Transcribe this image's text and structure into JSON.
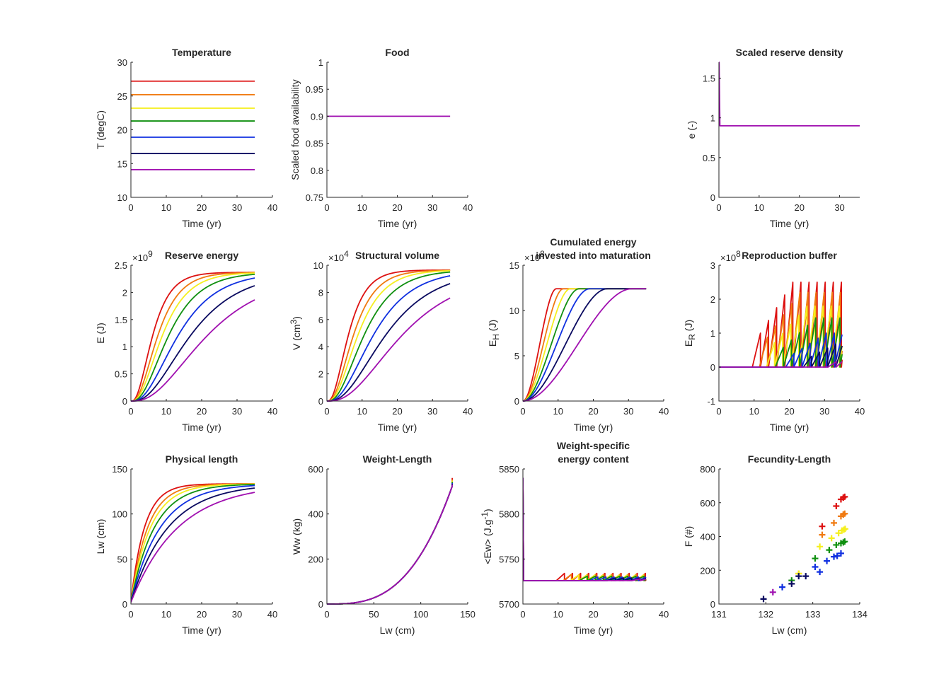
{
  "colors": {
    "T1": "#dd1111",
    "T2": "#f07a10",
    "T3": "#f5ef1f",
    "T4": "#109010",
    "T5": "#1030e0",
    "T6": "#0a0a60",
    "T7": "#a010b0"
  },
  "temperatures": [
    27.2,
    25.2,
    23.2,
    21.3,
    18.9,
    16.5,
    14.1
  ],
  "chart_data": [
    {
      "id": "temperature",
      "type": "line",
      "title": [
        "Temperature"
      ],
      "xlabel": "Time (yr)",
      "ylabel": "T (degC)",
      "xlim": [
        0,
        40
      ],
      "ylim": [
        10,
        30
      ],
      "xticks": [
        0,
        10,
        20,
        30,
        40
      ],
      "xtick_labels": [
        "0",
        "10",
        "20",
        "30",
        "40"
      ],
      "yticks": [
        10,
        15,
        20,
        25,
        30
      ],
      "ytick_labels": [
        "10",
        "15",
        "20",
        "25",
        "30"
      ],
      "series": [
        {
          "color": "T1",
          "x": [
            0,
            35
          ],
          "y": [
            27.2,
            27.2
          ]
        },
        {
          "color": "T2",
          "x": [
            0,
            35
          ],
          "y": [
            25.2,
            25.2
          ]
        },
        {
          "color": "T3",
          "x": [
            0,
            35
          ],
          "y": [
            23.2,
            23.2
          ]
        },
        {
          "color": "T4",
          "x": [
            0,
            35
          ],
          "y": [
            21.3,
            21.3
          ]
        },
        {
          "color": "T5",
          "x": [
            0,
            35
          ],
          "y": [
            18.9,
            18.9
          ]
        },
        {
          "color": "T6",
          "x": [
            0,
            35
          ],
          "y": [
            16.5,
            16.5
          ]
        },
        {
          "color": "T7",
          "x": [
            0,
            35
          ],
          "y": [
            14.1,
            14.1
          ]
        }
      ]
    },
    {
      "id": "food",
      "type": "line",
      "title": [
        "Food"
      ],
      "xlabel": "Time (yr)",
      "ylabel": "Scaled food availability",
      "xlim": [
        0,
        40
      ],
      "ylim": [
        0.75,
        1
      ],
      "xticks": [
        0,
        10,
        20,
        30,
        40
      ],
      "xtick_labels": [
        "0",
        "10",
        "20",
        "30",
        "40"
      ],
      "yticks": [
        0.75,
        0.8,
        0.85,
        0.9,
        0.95,
        1
      ],
      "ytick_labels": [
        "0.75",
        "0.8",
        "0.85",
        "0.9",
        "0.95",
        "1"
      ],
      "series": [
        {
          "color": "T7",
          "x": [
            0,
            35
          ],
          "y": [
            0.9,
            0.9
          ]
        }
      ]
    },
    {
      "id": "reserve_density",
      "type": "line",
      "title": [
        "Scaled reserve density"
      ],
      "xlabel": "Time (yr)",
      "ylabel": "e (-)",
      "xlim": [
        0,
        35
      ],
      "ylim": [
        0,
        1.7
      ],
      "xticks": [
        0,
        10,
        20,
        30
      ],
      "xtick_labels": [
        "0",
        "10",
        "20",
        "30"
      ],
      "yticks": [
        0,
        0.5,
        1,
        1.5
      ],
      "ytick_labels": [
        "0",
        "0.5",
        "1",
        "1.5"
      ],
      "series": [
        {
          "color": "T7",
          "x": [
            0,
            0.05,
            0.25,
            35
          ],
          "y": [
            1.7,
            1.7,
            0.9,
            0.9
          ]
        }
      ]
    },
    {
      "id": "reserve_energy",
      "type": "line",
      "title": [
        "Reserve energy"
      ],
      "xlabel": "Time (yr)",
      "ylabel": "E (J)",
      "exponent": "9",
      "xlim": [
        0,
        40
      ],
      "ylim": [
        0,
        2.5
      ],
      "xticks": [
        0,
        10,
        20,
        30,
        40
      ],
      "xtick_labels": [
        "0",
        "10",
        "20",
        "30",
        "40"
      ],
      "yticks": [
        0,
        0.5,
        1,
        1.5,
        2,
        2.5
      ],
      "ytick_labels": [
        "0",
        "0.5",
        "1",
        "1.5",
        "2",
        "2.5"
      ],
      "generator": {
        "kind": "growth",
        "max": 2.37,
        "power": 3,
        "tmax": 35,
        "rates": [
          0.26,
          0.21,
          0.18,
          0.15,
          0.12,
          0.095,
          0.075
        ],
        "last_max": 2.34
      }
    },
    {
      "id": "structural_volume",
      "type": "line",
      "title": [
        "Structural volume"
      ],
      "xlabel": "Time (yr)",
      "ylabel": "V (cm3)",
      "exponent": "4",
      "xlim": [
        0,
        40
      ],
      "ylim": [
        0,
        10
      ],
      "xticks": [
        0,
        10,
        20,
        30,
        40
      ],
      "xtick_labels": [
        "0",
        "10",
        "20",
        "30",
        "40"
      ],
      "yticks": [
        0,
        2,
        4,
        6,
        8,
        10
      ],
      "ytick_labels": [
        "0",
        "2",
        "4",
        "6",
        "8",
        "10"
      ],
      "generator": {
        "kind": "growth",
        "max": 9.65,
        "power": 3,
        "tmax": 35,
        "rates": [
          0.26,
          0.21,
          0.18,
          0.15,
          0.12,
          0.095,
          0.075
        ],
        "last_max": 9.7
      }
    },
    {
      "id": "maturation",
      "type": "line",
      "title": [
        "Cumulated energy",
        "invested into maturation"
      ],
      "xlabel": "Time (yr)",
      "ylabel": "EH (J)",
      "exponent": "8",
      "xlim": [
        0,
        40
      ],
      "ylim": [
        0,
        15
      ],
      "xticks": [
        0,
        10,
        20,
        30,
        40
      ],
      "xtick_labels": [
        "0",
        "10",
        "20",
        "30",
        "40"
      ],
      "yticks": [
        0,
        5,
        10,
        15
      ],
      "ytick_labels": [
        "0",
        "5",
        "10",
        "15"
      ],
      "generator": {
        "kind": "maturation",
        "max": 12.4,
        "tmax": 35,
        "rates": [
          0.26,
          0.21,
          0.18,
          0.15,
          0.12,
          0.095,
          0.075
        ],
        "capt": [
          9.5,
          11.5,
          13.5,
          16,
          19,
          24,
          31
        ]
      }
    },
    {
      "id": "reproduction_buffer",
      "type": "line",
      "title": [
        "Reproduction buffer"
      ],
      "xlabel": "Time (yr)",
      "ylabel": "ER (J)",
      "exponent": "8",
      "xlim": [
        0,
        40
      ],
      "ylim": [
        -1,
        3
      ],
      "xticks": [
        0,
        10,
        20,
        30,
        40
      ],
      "xtick_labels": [
        "0",
        "10",
        "20",
        "30",
        "40"
      ],
      "yticks": [
        -1,
        0,
        1,
        2,
        3
      ],
      "ytick_labels": [
        "-1",
        "0",
        "1",
        "2",
        "3"
      ],
      "generator": {
        "kind": "sawtooth",
        "tmax": 35,
        "starts": [
          9.5,
          11.5,
          13.5,
          16,
          19,
          24,
          31
        ],
        "peaks": [
          2.5,
          2.2,
          1.8,
          1.45,
          1.0,
          0.8,
          0.4
        ],
        "period": 2.3
      }
    },
    {
      "id": "physical_length",
      "type": "line",
      "title": [
        "Physical length"
      ],
      "xlabel": "Time (yr)",
      "ylabel": "Lw (cm)",
      "xlim": [
        0,
        40
      ],
      "ylim": [
        0,
        150
      ],
      "xticks": [
        0,
        10,
        20,
        30,
        40
      ],
      "xtick_labels": [
        "0",
        "10",
        "20",
        "30",
        "40"
      ],
      "yticks": [
        0,
        50,
        100,
        150
      ],
      "ytick_labels": [
        "0",
        "50",
        "100",
        "150"
      ],
      "generator": {
        "kind": "vonbert",
        "max": 133.5,
        "min": 2,
        "tmax": 35,
        "rates": [
          0.26,
          0.21,
          0.18,
          0.15,
          0.12,
          0.095,
          0.075
        ]
      }
    },
    {
      "id": "weight_length",
      "type": "line",
      "title": [
        "Weight-Length"
      ],
      "xlabel": "Lw (cm)",
      "ylabel": "Ww (kg)",
      "xlim": [
        0,
        150
      ],
      "ylim": [
        0,
        600
      ],
      "xticks": [
        0,
        50,
        100,
        150
      ],
      "xtick_labels": [
        "0",
        "50",
        "100",
        "150"
      ],
      "yticks": [
        0,
        200,
        400,
        600
      ],
      "ytick_labels": [
        "0",
        "200",
        "400",
        "600"
      ],
      "generator": {
        "kind": "allometric",
        "a": 0.00022,
        "b": 3.0,
        "lmax": 133.5,
        "tips": [
          560,
          553,
          548,
          543,
          538,
          534,
          530
        ]
      }
    },
    {
      "id": "energy_content",
      "type": "line",
      "title": [
        "Weight-specific",
        "energy content"
      ],
      "xlabel": "Time (yr)",
      "ylabel": "<Ew> (J.g-1)",
      "xlim": [
        0,
        40
      ],
      "ylim": [
        5700,
        5850
      ],
      "xticks": [
        0,
        10,
        20,
        30,
        40
      ],
      "xtick_labels": [
        "0",
        "10",
        "20",
        "30",
        "40"
      ],
      "yticks": [
        5700,
        5750,
        5800,
        5850
      ],
      "ytick_labels": [
        "5700",
        "5750",
        "5800",
        "5850"
      ],
      "generator": {
        "kind": "energy_saw",
        "base": 5726,
        "spike": 5840,
        "tmax": 35,
        "starts": [
          9.5,
          11.5,
          13.5,
          16,
          19,
          24,
          31
        ],
        "amps": [
          8,
          7,
          6,
          5,
          4,
          3,
          2
        ],
        "period": 2.3
      }
    },
    {
      "id": "fecundity_length",
      "type": "scatter",
      "title": [
        "Fecundity-Length"
      ],
      "xlabel": "Lw (cm)",
      "ylabel": "F (#)",
      "xlim": [
        131,
        134
      ],
      "ylim": [
        0,
        800
      ],
      "xticks": [
        131,
        132,
        133,
        134
      ],
      "xtick_labels": [
        "131",
        "132",
        "133",
        "134"
      ],
      "yticks": [
        0,
        200,
        400,
        600,
        800
      ],
      "ytick_labels": [
        "0",
        "200",
        "400",
        "600",
        "800"
      ],
      "points": [
        {
          "color": "T1",
          "x": 133.2,
          "y": 460
        },
        {
          "color": "T1",
          "x": 133.5,
          "y": 580
        },
        {
          "color": "T1",
          "x": 133.6,
          "y": 620
        },
        {
          "color": "T1",
          "x": 133.65,
          "y": 630
        },
        {
          "color": "T1",
          "x": 133.68,
          "y": 635
        },
        {
          "color": "T2",
          "x": 132.7,
          "y": 180
        },
        {
          "color": "T2",
          "x": 133.2,
          "y": 410
        },
        {
          "color": "T2",
          "x": 133.45,
          "y": 480
        },
        {
          "color": "T2",
          "x": 133.6,
          "y": 520
        },
        {
          "color": "T2",
          "x": 133.65,
          "y": 530
        },
        {
          "color": "T2",
          "x": 133.68,
          "y": 535
        },
        {
          "color": "T3",
          "x": 132.7,
          "y": 180
        },
        {
          "color": "T3",
          "x": 133.15,
          "y": 340
        },
        {
          "color": "T3",
          "x": 133.4,
          "y": 390
        },
        {
          "color": "T3",
          "x": 133.55,
          "y": 420
        },
        {
          "color": "T3",
          "x": 133.62,
          "y": 435
        },
        {
          "color": "T3",
          "x": 133.66,
          "y": 440
        },
        {
          "color": "T3",
          "x": 133.69,
          "y": 445
        },
        {
          "color": "T4",
          "x": 132.55,
          "y": 140
        },
        {
          "color": "T4",
          "x": 133.05,
          "y": 270
        },
        {
          "color": "T4",
          "x": 133.35,
          "y": 320
        },
        {
          "color": "T4",
          "x": 133.5,
          "y": 350
        },
        {
          "color": "T4",
          "x": 133.6,
          "y": 360
        },
        {
          "color": "T4",
          "x": 133.65,
          "y": 365
        },
        {
          "color": "T4",
          "x": 133.68,
          "y": 370
        },
        {
          "color": "T5",
          "x": 132.35,
          "y": 100
        },
        {
          "color": "T5",
          "x": 133.05,
          "y": 220
        },
        {
          "color": "T5",
          "x": 133.15,
          "y": 190
        },
        {
          "color": "T5",
          "x": 133.3,
          "y": 255
        },
        {
          "color": "T5",
          "x": 133.45,
          "y": 280
        },
        {
          "color": "T5",
          "x": 133.52,
          "y": 285
        },
        {
          "color": "T5",
          "x": 133.6,
          "y": 300
        },
        {
          "color": "T6",
          "x": 131.95,
          "y": 30
        },
        {
          "color": "T6",
          "x": 132.55,
          "y": 120
        },
        {
          "color": "T6",
          "x": 132.7,
          "y": 165
        },
        {
          "color": "T6",
          "x": 132.85,
          "y": 165
        },
        {
          "color": "T7",
          "x": 132.15,
          "y": 70
        }
      ]
    }
  ]
}
